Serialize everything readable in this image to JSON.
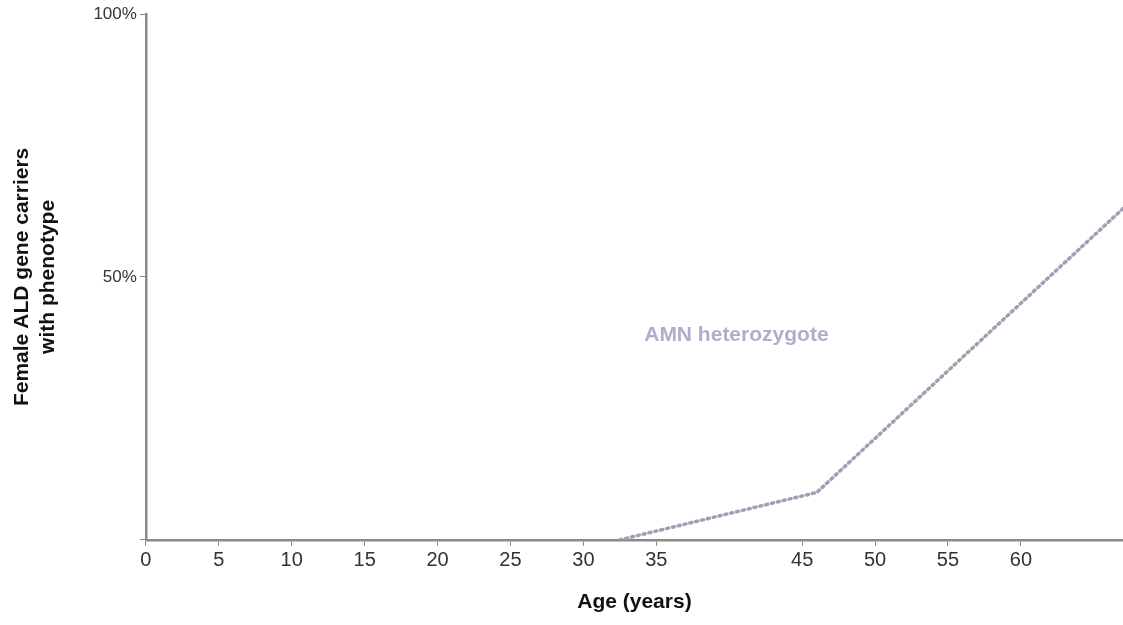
{
  "chart_data": {
    "type": "line",
    "xlabel": "Age (years)",
    "ylabel": "Female ALD gene carriers with phenotype",
    "series": [
      {
        "name": "AMN heterozygote",
        "color": "#a59eb3",
        "x": [
          32.5,
          46,
          67
        ],
        "values": [
          0,
          9,
          63
        ]
      }
    ],
    "xlim": [
      0,
      67
    ],
    "xticks": [
      0,
      5,
      10,
      15,
      20,
      25,
      30,
      35,
      45,
      50,
      55,
      60
    ],
    "ylim": [
      0,
      100
    ],
    "yticks": [
      {
        "value": 0,
        "label": null
      },
      {
        "value": 50,
        "label": "50%"
      },
      {
        "value": 100,
        "label": "100%"
      }
    ],
    "grid": false,
    "legend": false,
    "marker": "none",
    "line_style": "dotted"
  }
}
